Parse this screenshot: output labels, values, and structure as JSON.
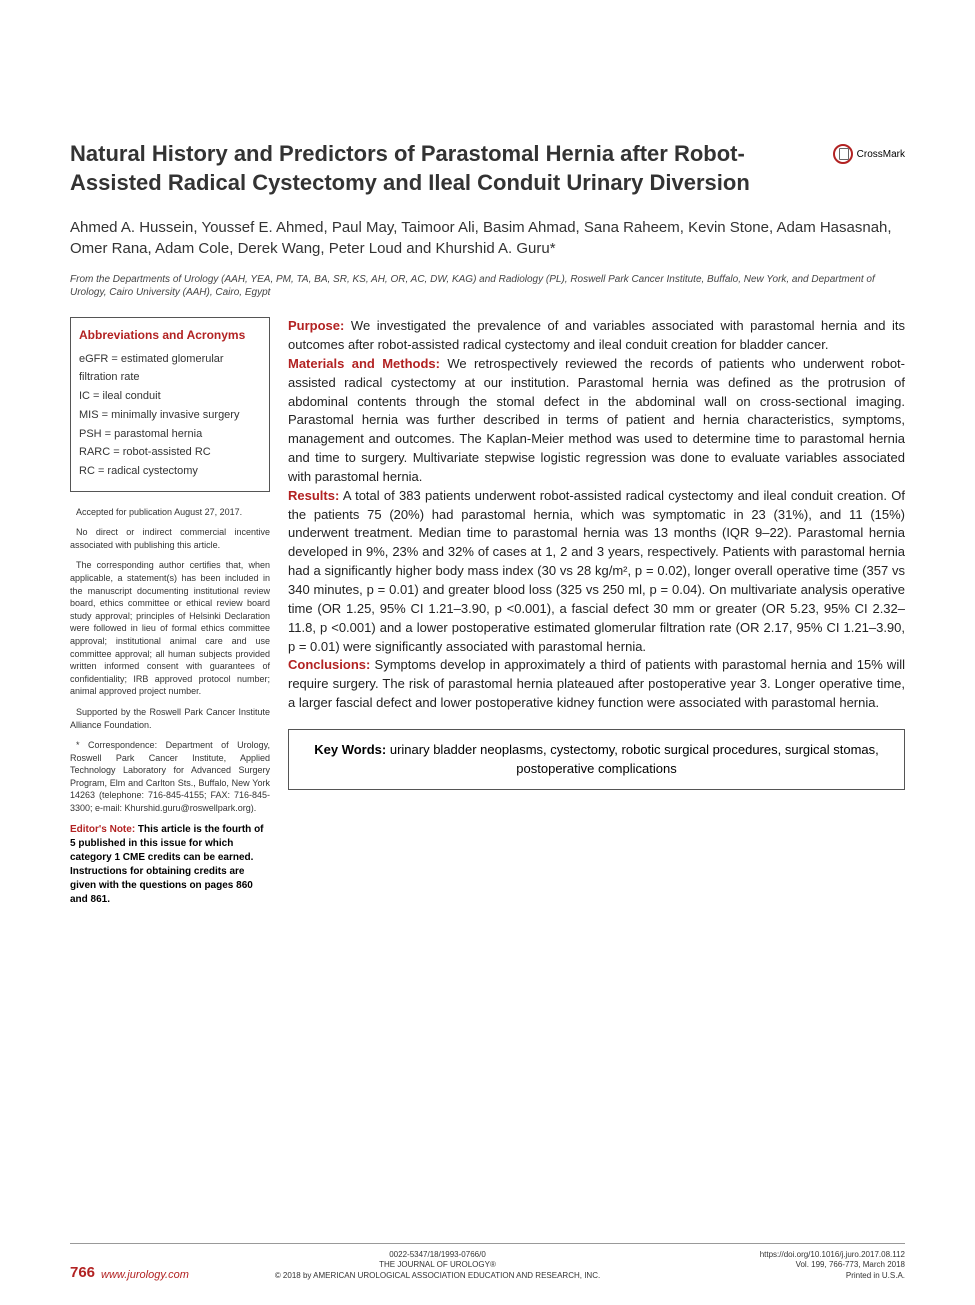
{
  "title": "Natural History and Predictors of Parastomal Hernia after Robot-Assisted Radical Cystectomy and Ileal Conduit Urinary Diversion",
  "crossmark": "CrossMark",
  "authors": "Ahmed A. Hussein, Youssef E. Ahmed, Paul May, Taimoor Ali, Basim Ahmad, Sana Raheem, Kevin Stone, Adam Hasasnah, Omer Rana, Adam Cole, Derek Wang, Peter Loud and Khurshid A. Guru*",
  "affiliation": "From the Departments of Urology (AAH, YEA, PM, TA, BA, SR, KS, AH, OR, AC, DW, KAG) and Radiology (PL), Roswell Park Cancer Institute, Buffalo, New York, and Department of Urology, Cairo University (AAH), Cairo, Egypt",
  "abbrev": {
    "title": "Abbreviations and Acronyms",
    "items": [
      "eGFR = estimated glomerular filtration rate",
      "IC = ileal conduit",
      "MIS = minimally invasive surgery",
      "PSH = parastomal hernia",
      "RARC = robot-assisted RC",
      "RC = radical cystectomy"
    ]
  },
  "notes": [
    "Accepted for publication August 27, 2017.",
    "No direct or indirect commercial incentive associated with publishing this article.",
    "The corresponding author certifies that, when applicable, a statement(s) has been included in the manuscript documenting institutional review board, ethics committee or ethical review board study approval; principles of Helsinki Declaration were followed in lieu of formal ethics committee approval; institutional animal care and use committee approval; all human subjects provided written informed consent with guarantees of confidentiality; IRB approved protocol number; animal approved project number.",
    "Supported by the Roswell Park Cancer Institute Alliance Foundation.",
    "* Correspondence: Department of Urology, Roswell Park Cancer Institute, Applied Technology Laboratory for Advanced Surgery Program, Elm and Carlton Sts., Buffalo, New York 14263 (telephone: 716-845-4155; FAX: 716-845-3300; e-mail: Khurshid.guru@roswellpark.org)."
  ],
  "editor_note": {
    "label": "Editor's Note:",
    "text": " This article is the fourth of 5 published in this issue for which category 1 CME credits can be earned. Instructions for obtaining credits are given with the questions on pages 860 and 861."
  },
  "abstract": {
    "purpose": {
      "label": "Purpose:",
      "text": " We investigated the prevalence of and variables associated with parastomal hernia and its outcomes after robot-assisted radical cystectomy and ileal conduit creation for bladder cancer."
    },
    "methods": {
      "label": "Materials and Methods:",
      "text": " We retrospectively reviewed the records of patients who underwent robot-assisted radical cystectomy at our institution. Parastomal hernia was defined as the protrusion of abdominal contents through the stomal defect in the abdominal wall on cross-sectional imaging. Parastomal hernia was further described in terms of patient and hernia characteristics, symptoms, management and outcomes. The Kaplan-Meier method was used to determine time to parastomal hernia and time to surgery. Multivariate stepwise logistic regression was done to evaluate variables associated with parastomal hernia."
    },
    "results": {
      "label": "Results:",
      "text": " A total of 383 patients underwent robot-assisted radical cystectomy and ileal conduit creation. Of the patients 75 (20%) had parastomal hernia, which was symptomatic in 23 (31%), and 11 (15%) underwent treatment. Median time to parastomal hernia was 13 months (IQR 9–22). Parastomal hernia developed in 9%, 23% and 32% of cases at 1, 2 and 3 years, respectively. Patients with parastomal hernia had a significantly higher body mass index (30 vs 28 kg/m², p = 0.02), longer overall operative time (357 vs 340 minutes, p = 0.01) and greater blood loss (325 vs 250 ml, p = 0.04). On multivariate analysis operative time (OR 1.25, 95% CI 1.21–3.90, p <0.001), a fascial defect 30 mm or greater (OR 5.23, 95% CI 2.32–11.8, p <0.001) and a lower postoperative estimated glomerular filtration rate (OR 2.17, 95% CI 1.21–3.90, p = 0.01) were significantly associated with parastomal hernia."
    },
    "conclusions": {
      "label": "Conclusions:",
      "text": " Symptoms develop in approximately a third of patients with parastomal hernia and 15% will require surgery. The risk of parastomal hernia plateaued after postoperative year 3. Longer operative time, a larger fascial defect and lower postoperative kidney function were associated with parastomal hernia."
    }
  },
  "keywords": {
    "label": "Key Words:",
    "text": " urinary bladder neoplasms, cystectomy, robotic surgical procedures, surgical stomas, postoperative complications"
  },
  "footer": {
    "page": "766",
    "url": "www.jurology.com",
    "center_lines": [
      "0022-5347/18/1993-0766/0",
      "THE JOURNAL OF UROLOGY®",
      "© 2018 by AMERICAN UROLOGICAL ASSOCIATION EDUCATION AND RESEARCH, INC."
    ],
    "right_lines": [
      "https://doi.org/10.1016/j.juro.2017.08.112",
      "Vol. 199, 766-773, March 2018",
      "Printed in U.S.A."
    ]
  },
  "colors": {
    "accent": "#b22222",
    "text": "#222222",
    "border": "#555555",
    "bg": "#ffffff"
  }
}
